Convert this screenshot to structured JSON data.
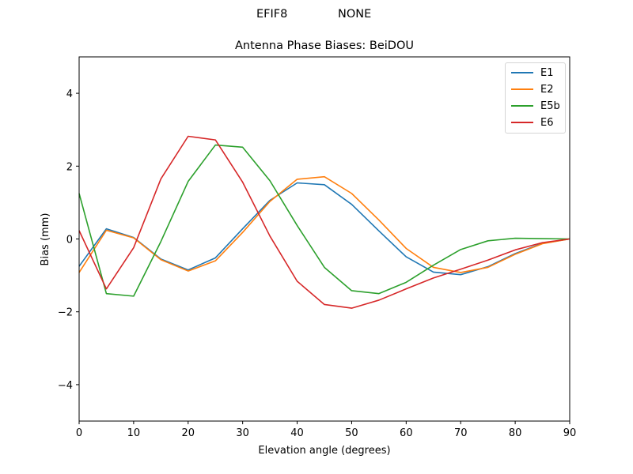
{
  "header": {
    "station": "EFIF8",
    "radome": "NONE",
    "title": "Antenna Phase Biases: BeiDOU"
  },
  "axes": {
    "xlabel": "Elevation angle (degrees)",
    "ylabel": "Bias (mm)",
    "xticks": [
      "0",
      "10",
      "20",
      "30",
      "40",
      "50",
      "60",
      "70",
      "80",
      "90"
    ],
    "yticks": [
      "4",
      "2",
      "0",
      "−2",
      "−4"
    ]
  },
  "legend": {
    "items": [
      {
        "label": "E1",
        "color": "#1f77b4"
      },
      {
        "label": "E2",
        "color": "#ff7f0e"
      },
      {
        "label": "E5b",
        "color": "#2ca02c"
      },
      {
        "label": "E6",
        "color": "#d62728"
      }
    ]
  },
  "chart_data": {
    "type": "line",
    "title": "Antenna Phase Biases: BeiDOU",
    "suptitle": "EFIF8            NONE",
    "xlabel": "Elevation angle (degrees)",
    "ylabel": "Bias (mm)",
    "xlim": [
      0,
      90
    ],
    "ylim": [
      -5,
      5
    ],
    "grid": false,
    "legend_position": "upper right",
    "x": [
      0,
      5,
      10,
      15,
      20,
      25,
      30,
      35,
      40,
      45,
      50,
      55,
      60,
      65,
      70,
      75,
      80,
      85,
      90
    ],
    "series": [
      {
        "name": "E1",
        "color": "#1f77b4",
        "values": [
          -0.75,
          0.28,
          0.04,
          -0.55,
          -0.85,
          -0.52,
          0.28,
          1.06,
          1.54,
          1.49,
          0.95,
          0.22,
          -0.49,
          -0.91,
          -0.98,
          -0.76,
          -0.4,
          -0.12,
          0.0
        ]
      },
      {
        "name": "E2",
        "color": "#ff7f0e",
        "values": [
          -0.92,
          0.24,
          0.03,
          -0.57,
          -0.88,
          -0.6,
          0.18,
          1.03,
          1.64,
          1.71,
          1.25,
          0.52,
          -0.26,
          -0.78,
          -0.92,
          -0.78,
          -0.42,
          -0.13,
          0.0
        ]
      },
      {
        "name": "E5b",
        "color": "#2ca02c",
        "values": [
          1.25,
          -1.5,
          -1.57,
          -0.07,
          1.58,
          2.58,
          2.52,
          1.6,
          0.37,
          -0.78,
          -1.42,
          -1.5,
          -1.19,
          -0.72,
          -0.29,
          -0.05,
          0.02,
          0.01,
          0.0
        ]
      },
      {
        "name": "E6",
        "color": "#d62728",
        "values": [
          0.23,
          -1.37,
          -0.24,
          1.65,
          2.82,
          2.72,
          1.56,
          0.08,
          -1.16,
          -1.8,
          -1.9,
          -1.68,
          -1.37,
          -1.07,
          -0.83,
          -0.58,
          -0.3,
          -0.1,
          0.0
        ]
      }
    ]
  }
}
